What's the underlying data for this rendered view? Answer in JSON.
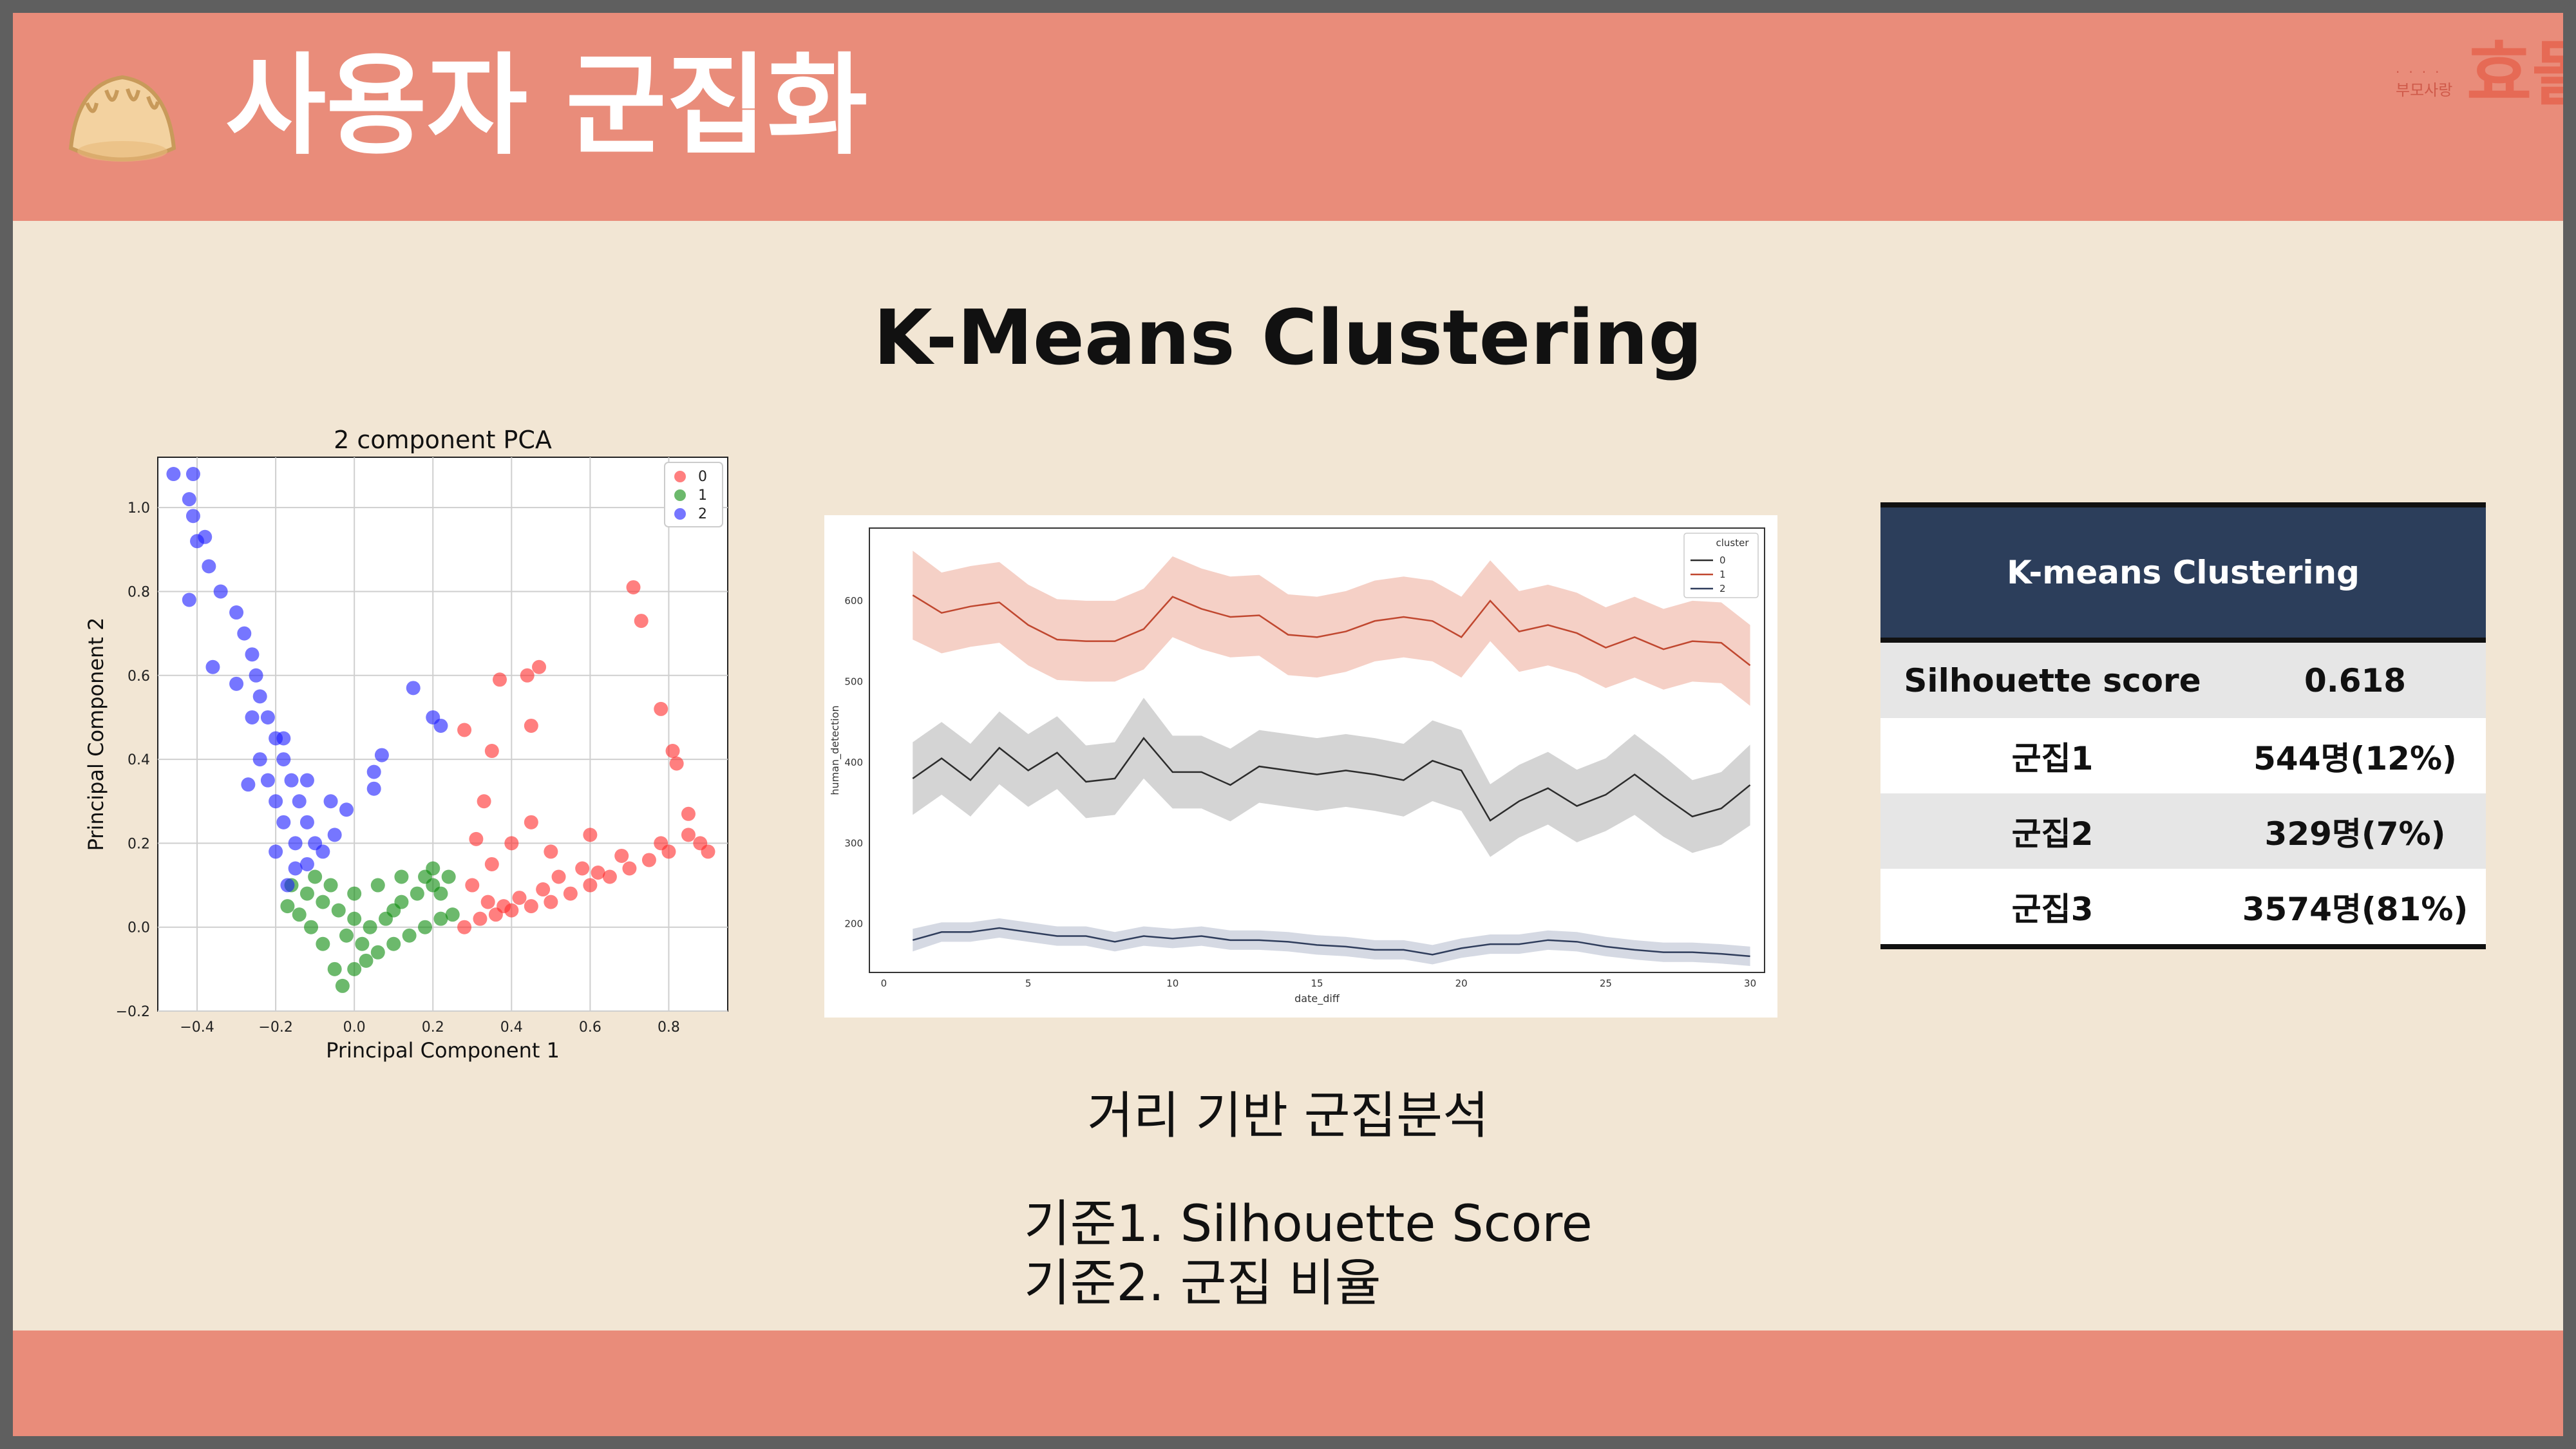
{
  "slide": {
    "title": "사용자 군집화",
    "subtitle": "K-Means Clustering",
    "brand_small": "부모사랑",
    "brand_main": "효돌"
  },
  "icons": {
    "header": "dumpling-icon"
  },
  "notes": {
    "method": "거리 기반 군집분석",
    "criteria": [
      "기준1. Silhouette Score",
      "기준2. 군집 비율"
    ]
  },
  "table": {
    "header": "K-means Clustering",
    "rows": [
      {
        "label": "Silhouette score",
        "value": "0.618"
      },
      {
        "label": "군집1",
        "value": "544명(12%)"
      },
      {
        "label": "군집2",
        "value": "329명(7%)"
      },
      {
        "label": "군집3",
        "value": "3574명(81%)"
      }
    ]
  },
  "colors": {
    "header_bg": "#e98c7a",
    "slide_bg": "#f2e6d4",
    "table_header_bg": "#2c3e5b"
  },
  "chart_data": [
    {
      "type": "scatter",
      "title": "2 component PCA",
      "xlabel": "Principal Component 1",
      "ylabel": "Principal Component 2",
      "xlim": [
        -0.5,
        0.95
      ],
      "ylim": [
        -0.2,
        1.12
      ],
      "xticks": [
        -0.4,
        -0.2,
        0.0,
        0.2,
        0.4,
        0.6,
        0.8
      ],
      "yticks": [
        -0.2,
        0.0,
        0.2,
        0.4,
        0.6,
        0.8,
        1.0
      ],
      "grid": true,
      "legend": "top-right",
      "series": [
        {
          "name": "0",
          "color": "#ff2a2a",
          "points": [
            [
              0.28,
              0.0
            ],
            [
              0.32,
              0.02
            ],
            [
              0.36,
              0.03
            ],
            [
              0.4,
              0.04
            ],
            [
              0.45,
              0.05
            ],
            [
              0.5,
              0.06
            ],
            [
              0.55,
              0.08
            ],
            [
              0.6,
              0.1
            ],
            [
              0.65,
              0.12
            ],
            [
              0.7,
              0.14
            ],
            [
              0.75,
              0.16
            ],
            [
              0.8,
              0.18
            ],
            [
              0.85,
              0.22
            ],
            [
              0.9,
              0.18
            ],
            [
              0.34,
              0.06
            ],
            [
              0.38,
              0.05
            ],
            [
              0.42,
              0.07
            ],
            [
              0.48,
              0.09
            ],
            [
              0.52,
              0.12
            ],
            [
              0.58,
              0.14
            ],
            [
              0.62,
              0.13
            ],
            [
              0.68,
              0.17
            ],
            [
              0.78,
              0.2
            ],
            [
              0.88,
              0.2
            ],
            [
              0.3,
              0.1
            ],
            [
              0.35,
              0.15
            ],
            [
              0.4,
              0.2
            ],
            [
              0.45,
              0.25
            ],
            [
              0.5,
              0.18
            ],
            [
              0.6,
              0.22
            ],
            [
              0.85,
              0.27
            ],
            [
              0.73,
              0.73
            ],
            [
              0.71,
              0.81
            ],
            [
              0.81,
              0.42
            ],
            [
              0.82,
              0.39
            ],
            [
              0.78,
              0.52
            ],
            [
              0.37,
              0.59
            ],
            [
              0.44,
              0.6
            ],
            [
              0.47,
              0.62
            ],
            [
              0.45,
              0.48
            ],
            [
              0.35,
              0.42
            ],
            [
              0.28,
              0.47
            ],
            [
              0.31,
              0.21
            ],
            [
              0.33,
              0.3
            ]
          ]
        },
        {
          "name": "1",
          "color": "#0a8a0a",
          "points": [
            [
              -0.17,
              0.05
            ],
            [
              -0.14,
              0.03
            ],
            [
              -0.11,
              0.0
            ],
            [
              -0.08,
              -0.04
            ],
            [
              -0.05,
              -0.1
            ],
            [
              -0.03,
              -0.14
            ],
            [
              0.0,
              -0.1
            ],
            [
              0.03,
              -0.08
            ],
            [
              0.06,
              -0.06
            ],
            [
              0.1,
              -0.04
            ],
            [
              0.14,
              -0.02
            ],
            [
              0.18,
              0.0
            ],
            [
              0.22,
              0.02
            ],
            [
              0.25,
              0.03
            ],
            [
              -0.12,
              0.08
            ],
            [
              -0.08,
              0.06
            ],
            [
              -0.04,
              0.04
            ],
            [
              0.0,
              0.02
            ],
            [
              0.04,
              0.0
            ],
            [
              0.08,
              0.02
            ],
            [
              0.12,
              0.06
            ],
            [
              0.16,
              0.08
            ],
            [
              0.2,
              0.1
            ],
            [
              0.24,
              0.12
            ],
            [
              -0.06,
              0.1
            ],
            [
              0.0,
              0.08
            ],
            [
              0.06,
              0.1
            ],
            [
              0.12,
              0.12
            ],
            [
              0.2,
              0.14
            ],
            [
              0.02,
              -0.04
            ],
            [
              -0.02,
              -0.02
            ],
            [
              0.1,
              0.04
            ],
            [
              0.22,
              0.08
            ],
            [
              0.18,
              0.12
            ],
            [
              -0.1,
              0.12
            ],
            [
              -0.16,
              0.1
            ]
          ]
        },
        {
          "name": "2",
          "color": "#1a1aff",
          "points": [
            [
              -0.46,
              1.08
            ],
            [
              -0.41,
              1.08
            ],
            [
              -0.42,
              1.02
            ],
            [
              -0.41,
              0.98
            ],
            [
              -0.4,
              0.92
            ],
            [
              -0.38,
              0.93
            ],
            [
              -0.37,
              0.86
            ],
            [
              -0.42,
              0.78
            ],
            [
              -0.34,
              0.8
            ],
            [
              -0.3,
              0.75
            ],
            [
              -0.28,
              0.7
            ],
            [
              -0.26,
              0.65
            ],
            [
              -0.25,
              0.6
            ],
            [
              -0.24,
              0.55
            ],
            [
              -0.22,
              0.5
            ],
            [
              -0.2,
              0.45
            ],
            [
              -0.18,
              0.4
            ],
            [
              -0.16,
              0.35
            ],
            [
              -0.14,
              0.3
            ],
            [
              -0.12,
              0.25
            ],
            [
              -0.1,
              0.2
            ],
            [
              -0.15,
              0.2
            ],
            [
              -0.18,
              0.25
            ],
            [
              -0.2,
              0.3
            ],
            [
              -0.22,
              0.35
            ],
            [
              -0.24,
              0.4
            ],
            [
              -0.17,
              0.1
            ],
            [
              -0.12,
              0.15
            ],
            [
              -0.08,
              0.18
            ],
            [
              -0.05,
              0.22
            ],
            [
              -0.26,
              0.5
            ],
            [
              -0.3,
              0.58
            ],
            [
              -0.36,
              0.62
            ],
            [
              -0.27,
              0.34
            ],
            [
              -0.18,
              0.45
            ],
            [
              -0.12,
              0.35
            ],
            [
              0.05,
              0.37
            ],
            [
              0.07,
              0.41
            ],
            [
              0.05,
              0.33
            ],
            [
              0.15,
              0.57
            ],
            [
              0.2,
              0.5
            ],
            [
              0.22,
              0.48
            ],
            [
              -0.02,
              0.28
            ],
            [
              -0.06,
              0.3
            ],
            [
              -0.15,
              0.14
            ],
            [
              -0.2,
              0.18
            ]
          ]
        }
      ]
    },
    {
      "type": "line",
      "xlabel": "date_diff",
      "ylabel": "human_detection",
      "legend_title": "cluster",
      "legend": "top-right",
      "xlim": [
        -0.5,
        30.5
      ],
      "ylim": [
        140,
        690
      ],
      "xticks": [
        0,
        5,
        10,
        15,
        20,
        25,
        30
      ],
      "yticks": [
        200,
        300,
        400,
        500,
        600
      ],
      "x": [
        1,
        2,
        3,
        4,
        5,
        6,
        7,
        8,
        9,
        10,
        11,
        12,
        13,
        14,
        15,
        16,
        17,
        18,
        19,
        20,
        21,
        22,
        23,
        24,
        25,
        26,
        27,
        28,
        29,
        30
      ],
      "series": [
        {
          "name": "0",
          "color": "#2c2c2c",
          "band": "#b8b8b8",
          "values": [
            380,
            405,
            378,
            418,
            390,
            412,
            376,
            380,
            430,
            388,
            388,
            372,
            395,
            390,
            385,
            390,
            385,
            378,
            402,
            390,
            328,
            352,
            368,
            346,
            360,
            385,
            358,
            333,
            343,
            372
          ],
          "spread": [
            45,
            45,
            45,
            45,
            45,
            45,
            45,
            45,
            50,
            45,
            45,
            45,
            45,
            45,
            45,
            45,
            45,
            45,
            50,
            50,
            45,
            45,
            45,
            45,
            45,
            50,
            50,
            45,
            45,
            50
          ]
        },
        {
          "name": "1",
          "color": "#c0472f",
          "band": "#efb0a0",
          "values": [
            607,
            585,
            593,
            598,
            570,
            552,
            550,
            550,
            565,
            605,
            590,
            580,
            582,
            558,
            555,
            562,
            575,
            580,
            575,
            555,
            600,
            562,
            570,
            560,
            542,
            555,
            540,
            550,
            548,
            520
          ],
          "spread": [
            55,
            50,
            50,
            50,
            50,
            50,
            50,
            50,
            50,
            50,
            50,
            50,
            50,
            50,
            50,
            50,
            50,
            50,
            50,
            50,
            50,
            50,
            50,
            50,
            50,
            50,
            50,
            50,
            50,
            50
          ]
        },
        {
          "name": "2",
          "color": "#2f3d5c",
          "band": "#b9c0d0",
          "values": [
            180,
            190,
            190,
            195,
            190,
            185,
            185,
            178,
            185,
            182,
            185,
            180,
            180,
            178,
            174,
            172,
            168,
            168,
            162,
            170,
            175,
            175,
            180,
            178,
            172,
            168,
            165,
            165,
            163,
            160
          ],
          "spread": [
            14,
            12,
            12,
            12,
            12,
            12,
            12,
            12,
            12,
            12,
            12,
            12,
            12,
            12,
            12,
            12,
            12,
            12,
            12,
            12,
            12,
            12,
            12,
            12,
            12,
            12,
            12,
            12,
            12,
            12
          ]
        }
      ]
    }
  ]
}
